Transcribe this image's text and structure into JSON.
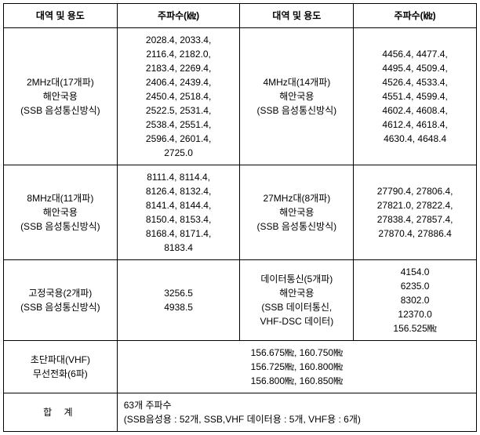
{
  "headers": {
    "band_usage": "대역 및 용도",
    "frequency": "주파수(㎑)"
  },
  "rows": [
    {
      "left_band": "2MHz대(17개파)\n해안국용\n(SSB 음성통신방식)",
      "left_freq": "2028.4, 2033.4,\n2116.4, 2182.0,\n2183.4, 2269.4,\n2406.4, 2439.4,\n2450.4, 2518.4,\n2522.5, 2531.4,\n2538.4, 2551.4,\n2596.4, 2601.4,\n2725.0",
      "right_band": "4MHz대(14개파)\n해안국용\n(SSB 음성통신방식)",
      "right_freq": "4456.4, 4477.4,\n4495.4, 4509.4,\n4526.4, 4533.4,\n4551.4, 4599.4,\n4602.4, 4608.4,\n4612.4, 4618.4,\n4630.4, 4648.4"
    },
    {
      "left_band": "8MHz대(11개파)\n해안국용\n(SSB 음성통신방식)",
      "left_freq": "8111.4, 8114.4,\n8126.4, 8132.4,\n8141.4, 8144.4,\n8150.4, 8153.4,\n8168.4, 8171.4,\n8183.4",
      "right_band": "27MHz대(8개파)\n해안국용\n(SSB 음성통신방식)",
      "right_freq": "27790.4, 27806.4,\n27821.0, 27822.4,\n27838.4, 27857.4,\n27870.4, 27886.4"
    },
    {
      "left_band": "고정국용(2개파)\n(SSB 음성통신방식)",
      "left_freq": "3256.5\n4938.5",
      "right_band": "데이터통신(5개파)\n해안국용\n(SSB 데이터통신,\nVHF-DSC 데이터)",
      "right_freq": "4154.0\n6235.0\n8302.0\n12370.0\n156.525㎒"
    }
  ],
  "vhf": {
    "band": "초단파대(VHF)\n무선전화(6파)",
    "freq": "156.675㎒, 160.750㎒\n156.725㎒, 160.800㎒\n156.800㎒, 160.850㎒"
  },
  "total": {
    "label": "합     계",
    "value": "63개 주파수\n(SSB음성용 : 52개, SSB,VHF 데이터용 : 5개, VHF용 : 6개)"
  },
  "colors": {
    "border": "#000000",
    "background": "#ffffff",
    "text": "#000000"
  },
  "font": {
    "family": "Malgun Gothic",
    "size_pt": 10,
    "header_weight": "bold"
  }
}
